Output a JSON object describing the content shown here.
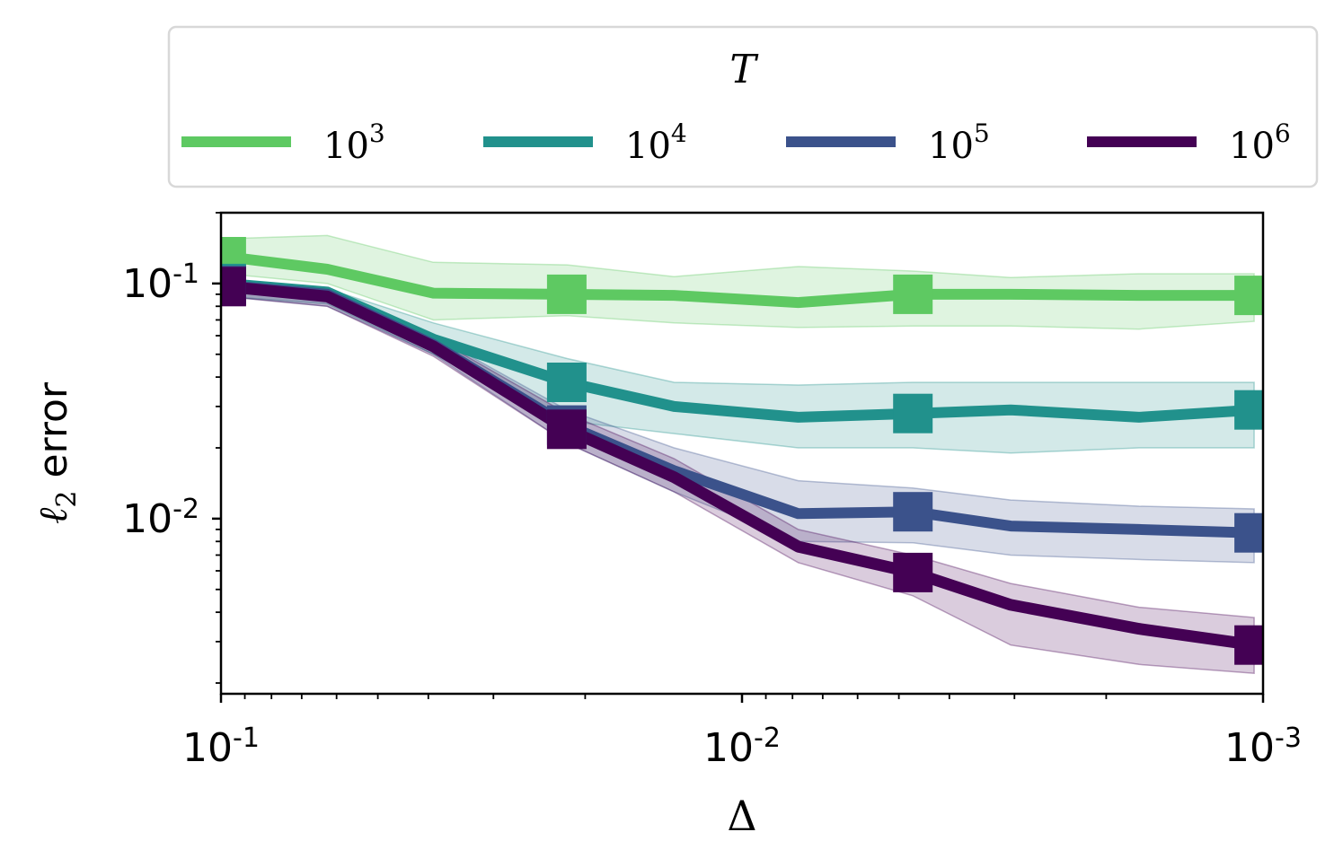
{
  "chart_data": {
    "type": "line",
    "xlabel": "Δ",
    "ylabel_math": "ℓ",
    "ylabel_sub": "2",
    "ylabel_text": "error",
    "xscale": "log",
    "yscale": "log",
    "x_reversed": true,
    "xlim": [
      0.1,
      0.001
    ],
    "ylim": [
      0.0018,
      0.2
    ],
    "x_ticks": [
      {
        "value": 0.1,
        "base": "10",
        "exp": "-1"
      },
      {
        "value": 0.01,
        "base": "10",
        "exp": "-2"
      },
      {
        "value": 0.001,
        "base": "10",
        "exp": "-3"
      }
    ],
    "y_ticks": [
      {
        "value": 0.1,
        "base": "10",
        "exp": "-1"
      },
      {
        "value": 0.01,
        "base": "10",
        "exp": "-2"
      }
    ],
    "legend": {
      "title": "T",
      "placement": "top-center, above plot"
    },
    "x": [
      0.0977,
      0.0625,
      0.0391,
      0.0217,
      0.0135,
      0.0078,
      0.0047,
      0.00305,
      0.00173,
      0.00104
    ],
    "marker_indices": [
      0,
      3,
      6,
      9
    ],
    "series": [
      {
        "name_base": "10",
        "name_exp": "3",
        "color": "#5ec962",
        "values": [
          0.13,
          0.115,
          0.091,
          0.09,
          0.089,
          0.083,
          0.09,
          0.09,
          0.089,
          0.089
        ],
        "lower": [
          0.11,
          0.1,
          0.07,
          0.073,
          0.068,
          0.065,
          0.066,
          0.066,
          0.064,
          0.069
        ],
        "upper": [
          0.155,
          0.16,
          0.123,
          0.12,
          0.107,
          0.118,
          0.113,
          0.106,
          0.11,
          0.11
        ]
      },
      {
        "name_base": "10",
        "name_exp": "4",
        "color": "#21918c",
        "values": [
          0.1,
          0.092,
          0.058,
          0.038,
          0.03,
          0.027,
          0.028,
          0.029,
          0.027,
          0.029
        ],
        "lower": [
          0.088,
          0.082,
          0.05,
          0.026,
          0.023,
          0.02,
          0.02,
          0.019,
          0.02,
          0.02
        ],
        "upper": [
          0.102,
          0.095,
          0.068,
          0.048,
          0.038,
          0.037,
          0.038,
          0.038,
          0.038,
          0.038
        ]
      },
      {
        "name_base": "10",
        "name_exp": "5",
        "color": "#3b528b",
        "values": [
          0.098,
          0.09,
          0.055,
          0.025,
          0.016,
          0.0105,
          0.0107,
          0.0093,
          0.009,
          0.0087
        ],
        "lower": [
          0.088,
          0.08,
          0.05,
          0.021,
          0.013,
          0.008,
          0.0079,
          0.007,
          0.0067,
          0.0065
        ],
        "upper": [
          0.1,
          0.095,
          0.06,
          0.029,
          0.02,
          0.0145,
          0.0135,
          0.012,
          0.0113,
          0.011
        ]
      },
      {
        "name_base": "10",
        "name_exp": "6",
        "color": "#440154",
        "values": [
          0.097,
          0.088,
          0.054,
          0.024,
          0.015,
          0.0076,
          0.0059,
          0.0043,
          0.0034,
          0.0029
        ],
        "lower": [
          0.088,
          0.08,
          0.049,
          0.021,
          0.013,
          0.0065,
          0.0047,
          0.0029,
          0.0024,
          0.0022
        ],
        "upper": [
          0.1,
          0.093,
          0.059,
          0.028,
          0.018,
          0.009,
          0.007,
          0.0053,
          0.0042,
          0.0038
        ]
      }
    ]
  }
}
